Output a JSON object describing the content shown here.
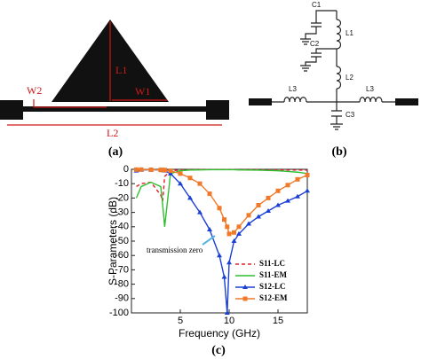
{
  "panel_a": {
    "labels": {
      "l1": "L1",
      "w1": "W1",
      "w2": "W2",
      "l2": "L2"
    },
    "caption": "(a)"
  },
  "panel_b": {
    "labels": {
      "c1": "C1",
      "c2": "C2",
      "l1": "L1",
      "l2": "L2",
      "l3_left": "L3",
      "l3_right": "L3",
      "c3": "C3"
    },
    "caption": "(b)"
  },
  "chart_data": {
    "type": "line",
    "caption": "(c)",
    "x_label": "Frequency (GHz)",
    "y_label": "S-Parameters (dB)",
    "annotation": "transmission zero",
    "x": [
      0.5,
      1,
      2,
      3,
      3.2,
      3.4,
      4,
      5,
      6,
      7,
      8,
      9,
      9.5,
      9.8,
      10,
      10.5,
      11,
      12,
      13,
      14,
      15,
      16,
      17,
      18
    ],
    "series": [
      {
        "name": "S11-LC",
        "color": "#e0202a",
        "dash": true,
        "marker": "none",
        "values": [
          -12,
          -10,
          -9,
          -18,
          -22,
          -5,
          -1,
          -0.5,
          -0.3,
          -0.2,
          -0.2,
          -0.2,
          -0.2,
          -0.2,
          -0.2,
          -0.2,
          -0.3,
          -0.3,
          -0.3,
          -0.4,
          -0.4,
          -0.5,
          -0.5,
          -0.6
        ]
      },
      {
        "name": "S11-EM",
        "color": "#2fbf2f",
        "dash": false,
        "marker": "none",
        "values": [
          -20,
          -12,
          -9,
          -12,
          -25,
          -40,
          -3,
          -1,
          -0.5,
          -0.4,
          -0.3,
          -0.3,
          -0.3,
          -0.3,
          -0.3,
          -0.3,
          -0.4,
          -0.5,
          -0.6,
          -0.8,
          -1,
          -1.5,
          -2,
          -3
        ]
      },
      {
        "name": "S12-LC",
        "color": "#1a3fd6",
        "dash": false,
        "marker": "triangle",
        "values": [
          -1,
          -0.5,
          -0.3,
          -0.5,
          -0.7,
          -1,
          -3,
          -10,
          -20,
          -30,
          -42,
          -60,
          -75,
          -100,
          -65,
          -50,
          -45,
          -38,
          -33,
          -29,
          -25,
          -22,
          -19,
          -15
        ]
      },
      {
        "name": "S12-EM",
        "color": "#f07a2a",
        "dash": false,
        "marker": "square",
        "values": [
          -0.2,
          -0.2,
          -0.3,
          -0.4,
          -0.5,
          -0.5,
          -1,
          -3,
          -6,
          -10,
          -17,
          -27,
          -35,
          -40,
          -45,
          -44,
          -40,
          -32,
          -25,
          -20,
          -15,
          -11,
          -7,
          -4
        ]
      }
    ],
    "xlim": [
      0,
      18
    ],
    "ylim": [
      -100,
      0
    ],
    "xticks": [
      5,
      10,
      15
    ],
    "yticks": [
      0,
      -10,
      -20,
      -30,
      -40,
      -50,
      -60,
      -70,
      -80,
      -90,
      -100
    ]
  }
}
